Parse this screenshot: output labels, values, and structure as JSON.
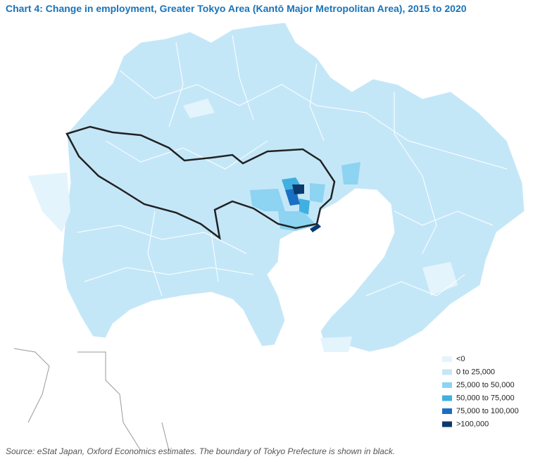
{
  "title": "Chart 4: Change in employment, Greater Tokyo Area (Kantō Major Metropolitan Area), 2015 to 2020",
  "legend": [
    {
      "label": "<0",
      "color": "#e3f4fc"
    },
    {
      "label": "0 to 25,000",
      "color": "#c4e7f8"
    },
    {
      "label": "25,000 to 50,000",
      "color": "#8dd3f2"
    },
    {
      "label": "50,000 to 75,000",
      "color": "#3fb0e0"
    },
    {
      "label": "75,000 to 100,000",
      "color": "#1a6fc4"
    },
    {
      "label": ">100,000",
      "color": "#0b3a6e"
    }
  ],
  "source": "Source: eStat Japan, Oxford Economics estimates. The boundary of Tokyo Prefecture is shown in black."
}
